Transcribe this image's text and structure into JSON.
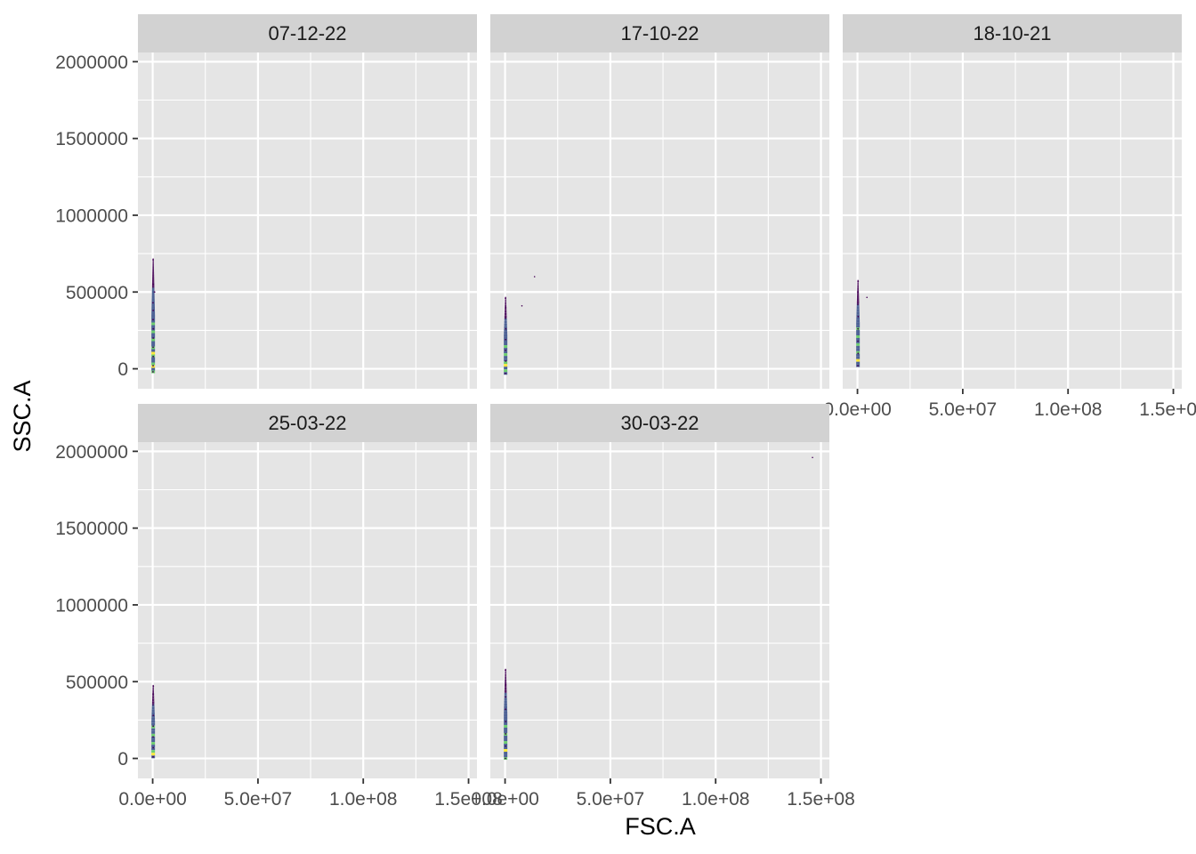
{
  "chart_data": {
    "type": "scatter",
    "xlabel": "FSC.A",
    "ylabel": "SSC.A",
    "xlim": [
      -7000000,
      154000000
    ],
    "ylim": [
      -130000,
      2060000
    ],
    "x_ticks": [
      0,
      25000000,
      50000000,
      75000000,
      100000000,
      125000000,
      150000000
    ],
    "x_tick_labels": [
      "0.0e+00",
      "5.0e+07",
      "1.0e+08",
      "1.5e+08"
    ],
    "x_tick_label_values": [
      0,
      50000000,
      100000000,
      150000000
    ],
    "y_ticks": [
      0,
      250000,
      500000,
      750000,
      1000000,
      1250000,
      1500000,
      1750000,
      2000000
    ],
    "y_tick_labels": [
      "0",
      "500000",
      "1000000",
      "1500000",
      "2000000"
    ],
    "y_tick_label_values": [
      0,
      500000,
      1000000,
      1500000,
      2000000
    ],
    "grid": true,
    "colors": {
      "panel_bg": "#e5e5e5",
      "strip_bg": "#d2d2d2",
      "grid": "#ffffff",
      "density_low": "#440154",
      "density_mid": "#3b528b",
      "density_high": "#5ec962",
      "density_peak": "#fde725"
    },
    "panels": [
      {
        "title": "07-12-22",
        "points": [
          {
            "x": 200000,
            "y": 710000
          },
          {
            "x": 300000,
            "y": 550000
          },
          {
            "x": 900000,
            "y": 500000
          },
          {
            "x": 150000,
            "y": 430000
          },
          {
            "x": 250000,
            "y": 380000
          },
          {
            "x": 200000,
            "y": 320000
          },
          {
            "x": 300000,
            "y": 260000
          },
          {
            "x": 250000,
            "y": 200000
          },
          {
            "x": 200000,
            "y": 140000
          },
          {
            "x": 250000,
            "y": 80000
          },
          {
            "x": 200000,
            "y": 20000
          },
          {
            "x": 150000,
            "y": -20000
          }
        ]
      },
      {
        "title": "17-10-22",
        "points": [
          {
            "x": 200000,
            "y": 460000
          },
          {
            "x": 8000000,
            "y": 410000
          },
          {
            "x": 14000000,
            "y": 600000
          },
          {
            "x": 300000,
            "y": 400000
          },
          {
            "x": 200000,
            "y": 330000
          },
          {
            "x": 350000,
            "y": 260000
          },
          {
            "x": 250000,
            "y": 190000
          },
          {
            "x": 200000,
            "y": 120000
          },
          {
            "x": 300000,
            "y": 50000
          },
          {
            "x": 150000,
            "y": -30000
          }
        ]
      },
      {
        "title": "18-10-21",
        "points": [
          {
            "x": 300000,
            "y": 570000
          },
          {
            "x": 4500000,
            "y": 465000
          },
          {
            "x": 250000,
            "y": 500000
          },
          {
            "x": 200000,
            "y": 420000
          },
          {
            "x": 350000,
            "y": 340000
          },
          {
            "x": 250000,
            "y": 260000
          },
          {
            "x": 200000,
            "y": 180000
          },
          {
            "x": 300000,
            "y": 100000
          },
          {
            "x": 200000,
            "y": 20000
          }
        ]
      },
      {
        "title": "25-03-22",
        "points": [
          {
            "x": 300000,
            "y": 470000
          },
          {
            "x": 250000,
            "y": 420000
          },
          {
            "x": 200000,
            "y": 350000
          },
          {
            "x": 300000,
            "y": 280000
          },
          {
            "x": 250000,
            "y": 210000
          },
          {
            "x": 200000,
            "y": 140000
          },
          {
            "x": 250000,
            "y": 70000
          },
          {
            "x": 200000,
            "y": 10000
          }
        ]
      },
      {
        "title": "30-03-22",
        "points": [
          {
            "x": 200000,
            "y": 575000
          },
          {
            "x": 146000000,
            "y": 1960000
          },
          {
            "x": 300000,
            "y": 480000
          },
          {
            "x": 250000,
            "y": 400000
          },
          {
            "x": 200000,
            "y": 320000
          },
          {
            "x": 300000,
            "y": 240000
          },
          {
            "x": 250000,
            "y": 160000
          },
          {
            "x": 200000,
            "y": 80000
          },
          {
            "x": 150000,
            "y": 0
          }
        ]
      }
    ]
  }
}
